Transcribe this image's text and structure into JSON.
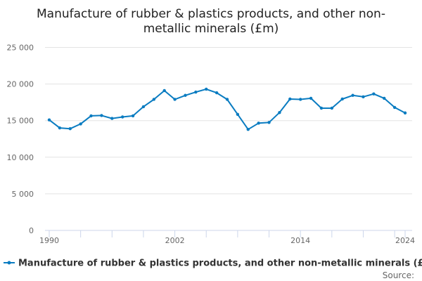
{
  "chart_data": {
    "type": "line",
    "title_lines": [
      "Manufacture of rubber & plastics products, and other non-",
      "metallic minerals (£m)"
    ],
    "xlabel": "",
    "ylabel": "",
    "x": [
      1990,
      1991,
      1992,
      1993,
      1994,
      1995,
      1996,
      1997,
      1998,
      1999,
      2000,
      2001,
      2002,
      2003,
      2004,
      2005,
      2006,
      2007,
      2008,
      2009,
      2010,
      2011,
      2012,
      2013,
      2014,
      2015,
      2016,
      2017,
      2018,
      2019,
      2020,
      2021,
      2022,
      2023,
      2024
    ],
    "series": [
      {
        "name": "Manufacture of rubber & plastics products, and other non-metallic minerals (£m)",
        "color": "#0a7cc1",
        "values": [
          15100,
          14000,
          13900,
          14550,
          15650,
          15700,
          15300,
          15500,
          15650,
          16900,
          17900,
          19100,
          17900,
          18450,
          18900,
          19300,
          18800,
          17900,
          15850,
          13800,
          14650,
          14750,
          16100,
          17950,
          17900,
          18050,
          16700,
          16700,
          17950,
          18450,
          18250,
          18650,
          18050,
          16800,
          16050
        ]
      }
    ],
    "ylim": [
      0,
      25000
    ],
    "yticks": [
      0,
      5000,
      10000,
      15000,
      20000,
      25000
    ],
    "ytick_labels": [
      "0",
      "5 000",
      "10 000",
      "15 000",
      "20 000",
      "25 000"
    ],
    "xtick_labels": [
      "1990",
      "2002",
      "2014",
      "2024"
    ],
    "xtick_label_years": [
      1990,
      2002,
      2014,
      2024
    ],
    "grid": true,
    "legend_position": "bottom",
    "source_label": "Source:"
  }
}
